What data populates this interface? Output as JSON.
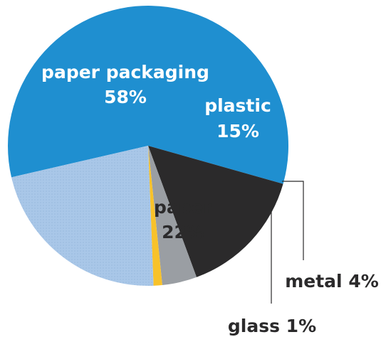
{
  "chart_data": {
    "type": "pie",
    "title": "",
    "slices": [
      {
        "label": "paper packaging",
        "value": 58,
        "display": "58%",
        "color": "#1f8fd0"
      },
      {
        "label": "plastic",
        "value": 15,
        "display": "15%",
        "color": "#2b2a2b"
      },
      {
        "label": "metal",
        "value": 4,
        "display": "metal 4%",
        "color": "#9a9ea3"
      },
      {
        "label": "glass",
        "value": 1,
        "display": "glass 1%",
        "color": "#f8c22a"
      },
      {
        "label": "paper",
        "value": 22,
        "display": "22%",
        "color": "#a9c7e8"
      }
    ]
  }
}
